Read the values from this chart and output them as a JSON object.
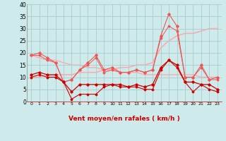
{
  "x": [
    0,
    1,
    2,
    3,
    4,
    5,
    6,
    7,
    8,
    9,
    10,
    11,
    12,
    13,
    14,
    15,
    16,
    17,
    18,
    19,
    20,
    21,
    22,
    23
  ],
  "line_rafales_upper": [
    19,
    20,
    18,
    16,
    8,
    9,
    13,
    16,
    19,
    13,
    14,
    12,
    12,
    13,
    12,
    13,
    27,
    36,
    31,
    10,
    10,
    15,
    9,
    10
  ],
  "line_rafales_lower": [
    19,
    19,
    17,
    16,
    8,
    9,
    13,
    15,
    18,
    12,
    13,
    12,
    12,
    13,
    12,
    13,
    26,
    31,
    29,
    10,
    10,
    14,
    9,
    9
  ],
  "line_vent_upper": [
    11,
    12,
    11,
    11,
    8,
    4,
    7,
    7,
    7,
    7,
    7,
    7,
    6,
    7,
    6,
    7,
    14,
    17,
    15,
    8,
    8,
    7,
    7,
    5
  ],
  "line_vent_lower": [
    10,
    11,
    10,
    10,
    8,
    1,
    3,
    3,
    3,
    6,
    7,
    6,
    6,
    6,
    5,
    5,
    13,
    17,
    14,
    8,
    4,
    7,
    5,
    4
  ],
  "trend_up1": [
    10,
    10,
    11,
    11,
    11,
    11,
    12,
    12,
    12,
    13,
    13,
    14,
    14,
    15,
    15,
    16,
    22,
    25,
    27,
    28,
    28,
    29,
    30,
    30
  ],
  "trend_up2": [
    10,
    10,
    11,
    11,
    11,
    11,
    12,
    12,
    12,
    13,
    13,
    14,
    14,
    15,
    15,
    16,
    22,
    25,
    27,
    28,
    28,
    29,
    30,
    30
  ],
  "trend_down": [
    19,
    18,
    17,
    17,
    16,
    15,
    15,
    14,
    14,
    13,
    13,
    12,
    12,
    12,
    11,
    11,
    11,
    11,
    11,
    11,
    11,
    10,
    10,
    10
  ],
  "bg_color": "#ceeaea",
  "grid_color": "#aacccc",
  "line_color_dark": "#cc0000",
  "line_color_mid": "#ee5555",
  "line_color_light": "#ffaaaa",
  "xlabel": "Vent moyen/en rafales ( km/h )",
  "ylim": [
    0,
    40
  ],
  "yticks": [
    0,
    5,
    10,
    15,
    20,
    25,
    30,
    35,
    40
  ]
}
